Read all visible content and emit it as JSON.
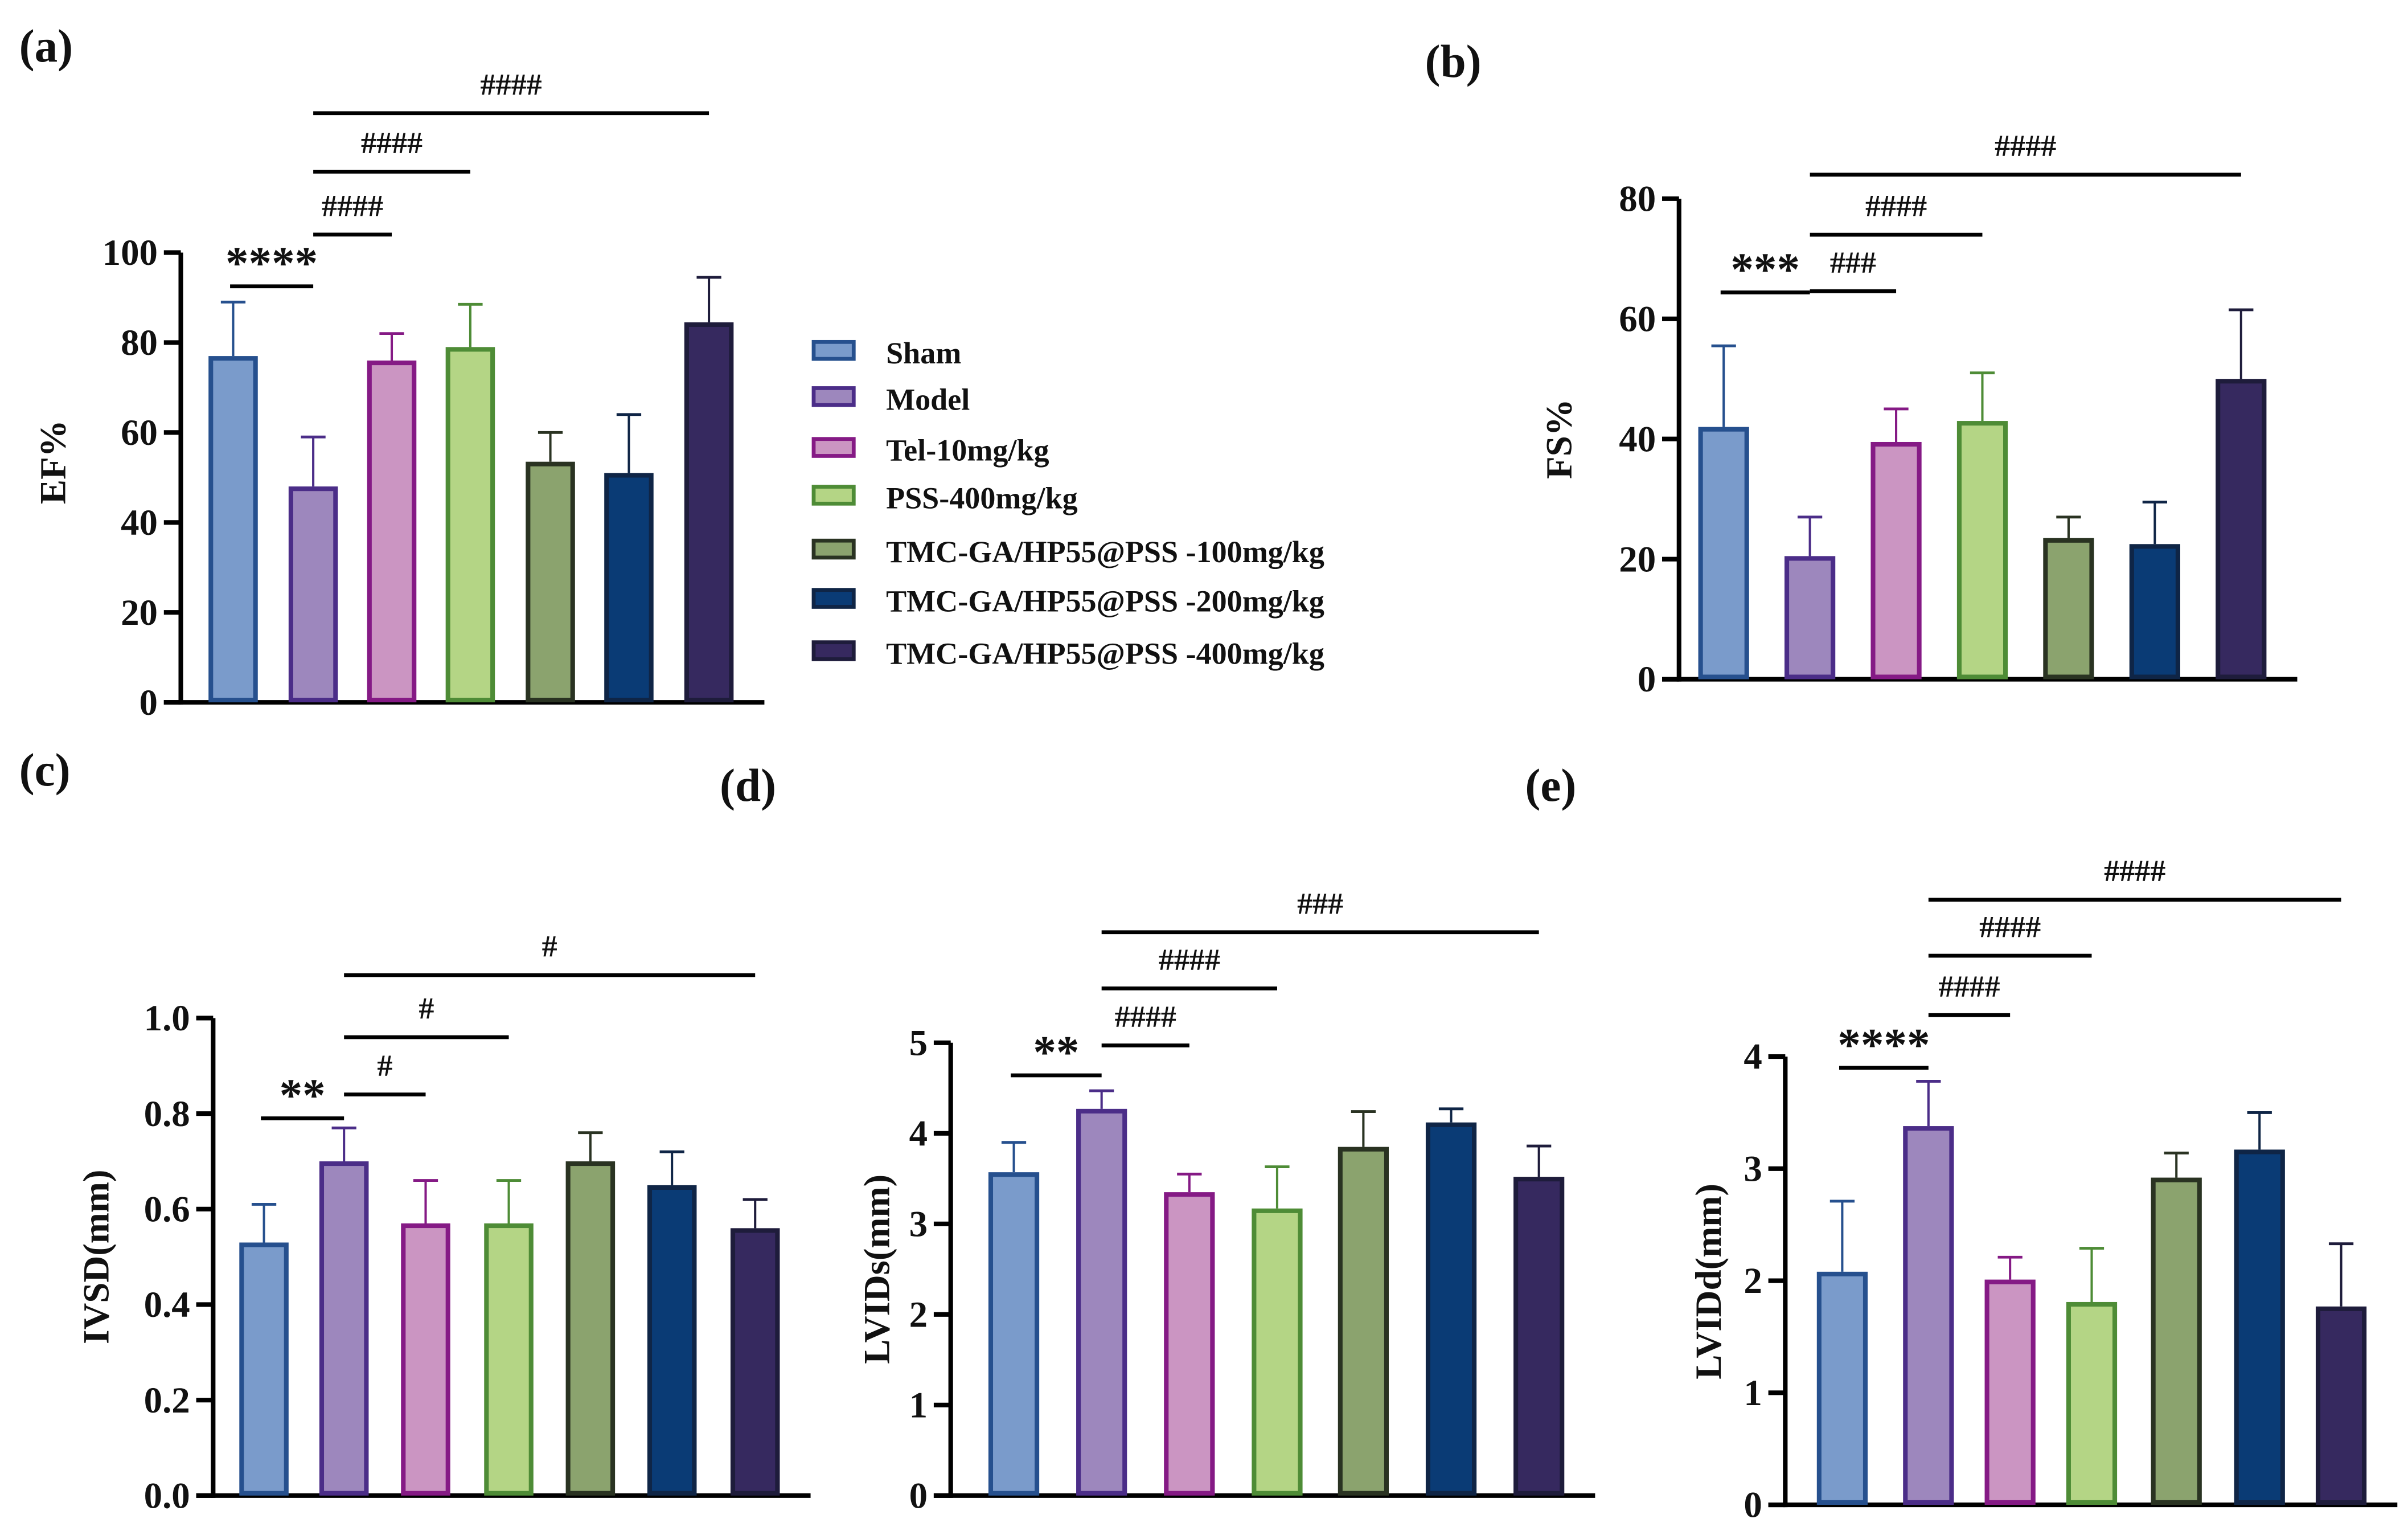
{
  "legend": {
    "entries": [
      "Sham",
      "Model",
      "Tel-10mg/kg",
      "PSS-400mg/kg",
      "TMC-GA/HP55@PSS -100mg/kg",
      "TMC-GA/HP55@PSS -200mg/kg",
      "TMC-GA/HP55@PSS -400mg/kg"
    ],
    "fills": [
      "#7a9bcb",
      "#9d87bd",
      "#cb95c2",
      "#b4d585",
      "#8ba36e",
      "#0a3b75",
      "#36295f"
    ],
    "strokes": [
      "#26508e",
      "#4b2d88",
      "#851a85",
      "#4e8c36",
      "#2a3322",
      "#0f2546",
      "#1e1c3b"
    ]
  },
  "chart_data": [
    {
      "panel": "(a)",
      "type": "bar",
      "ylabel": "EF%",
      "ylim": [
        0,
        100
      ],
      "ticks": [
        0,
        20,
        40,
        60,
        80,
        100
      ],
      "tick_labels": [
        "0",
        "20",
        "40",
        "60",
        "80",
        "100"
      ],
      "values": [
        77,
        48,
        76,
        79,
        53.5,
        51,
        84.5
      ],
      "error_upper": [
        89,
        59,
        82,
        88.5,
        60,
        64,
        94.5
      ],
      "annotations": [
        {
          "from": 0,
          "to": 1,
          "y": 92.5,
          "label": "****"
        },
        {
          "from": 1,
          "to": 2,
          "y": 104,
          "label": "####"
        },
        {
          "from": 1,
          "to": 3,
          "y": 118,
          "label": "####"
        },
        {
          "from": 1,
          "to": 6,
          "y": 131,
          "label": "####"
        }
      ]
    },
    {
      "panel": "(b)",
      "type": "bar",
      "ylabel": "FS%",
      "ylim": [
        0,
        80
      ],
      "ticks": [
        0,
        20,
        40,
        60,
        80
      ],
      "tick_labels": [
        "0",
        "20",
        "40",
        "60",
        "80"
      ],
      "values": [
        42,
        20.5,
        39.5,
        43,
        23.5,
        22.5,
        50
      ],
      "error_upper": [
        55.5,
        27,
        45,
        51,
        27,
        29.5,
        61.5
      ],
      "annotations": [
        {
          "from": 0,
          "to": 1,
          "y": 64.4,
          "label": "***"
        },
        {
          "from": 1,
          "to": 2,
          "y": 64.6,
          "label": "###"
        },
        {
          "from": 1,
          "to": 3,
          "y": 74,
          "label": "####"
        },
        {
          "from": 1,
          "to": 6,
          "y": 84,
          "label": "####"
        }
      ]
    },
    {
      "panel": "(c)",
      "type": "bar",
      "ylabel": "IVSD(mm)",
      "ylim": [
        0,
        1.0
      ],
      "ticks": [
        0,
        0.2,
        0.4,
        0.6,
        0.8,
        1.0
      ],
      "tick_labels": [
        "0.0",
        "0.2",
        "0.4",
        "0.6",
        "0.8",
        "1.0"
      ],
      "values": [
        0.53,
        0.7,
        0.57,
        0.57,
        0.7,
        0.65,
        0.56
      ],
      "error_upper": [
        0.61,
        0.77,
        0.66,
        0.66,
        0.76,
        0.72,
        0.62
      ],
      "annotations": [
        {
          "from": 0,
          "to": 1,
          "y": 0.79,
          "label": "**"
        },
        {
          "from": 1,
          "to": 2,
          "y": 0.84,
          "label": "#"
        },
        {
          "from": 1,
          "to": 3,
          "y": 0.96,
          "label": "#"
        },
        {
          "from": 1,
          "to": 6,
          "y": 1.09,
          "label": "#"
        }
      ]
    },
    {
      "panel": "(d)",
      "type": "bar",
      "ylabel": "LVIDs(mm)",
      "ylim": [
        0,
        5
      ],
      "ticks": [
        0,
        1,
        2,
        3,
        4,
        5
      ],
      "tick_labels": [
        "0",
        "1",
        "2",
        "3",
        "4",
        "5"
      ],
      "values": [
        3.57,
        4.27,
        3.35,
        3.17,
        3.85,
        4.12,
        3.52
      ],
      "error_upper": [
        3.9,
        4.47,
        3.55,
        3.63,
        4.24,
        4.27,
        3.86
      ],
      "annotations": [
        {
          "from": 0,
          "to": 1,
          "y": 4.64,
          "label": "**"
        },
        {
          "from": 1,
          "to": 2,
          "y": 4.97,
          "label": "####"
        },
        {
          "from": 1,
          "to": 3,
          "y": 5.6,
          "label": "####"
        },
        {
          "from": 1,
          "to": 6,
          "y": 6.22,
          "label": "###"
        }
      ]
    },
    {
      "panel": "(e)",
      "type": "bar",
      "ylabel": "LVIDd(mm)",
      "ylim": [
        0,
        4
      ],
      "ticks": [
        0,
        1,
        2,
        3,
        4
      ],
      "tick_labels": [
        "0",
        "1",
        "2",
        "3",
        "4"
      ],
      "values": [
        2.08,
        3.38,
        2.01,
        1.81,
        2.92,
        3.17,
        1.77
      ],
      "error_upper": [
        2.71,
        3.78,
        2.21,
        2.29,
        3.14,
        3.5,
        2.33
      ],
      "annotations": [
        {
          "from": 0,
          "to": 1,
          "y": 3.9,
          "label": "****"
        },
        {
          "from": 1,
          "to": 2,
          "y": 4.37,
          "label": "####"
        },
        {
          "from": 1,
          "to": 3,
          "y": 4.9,
          "label": "####"
        },
        {
          "from": 1,
          "to": 6,
          "y": 5.4,
          "label": "####"
        }
      ]
    }
  ]
}
